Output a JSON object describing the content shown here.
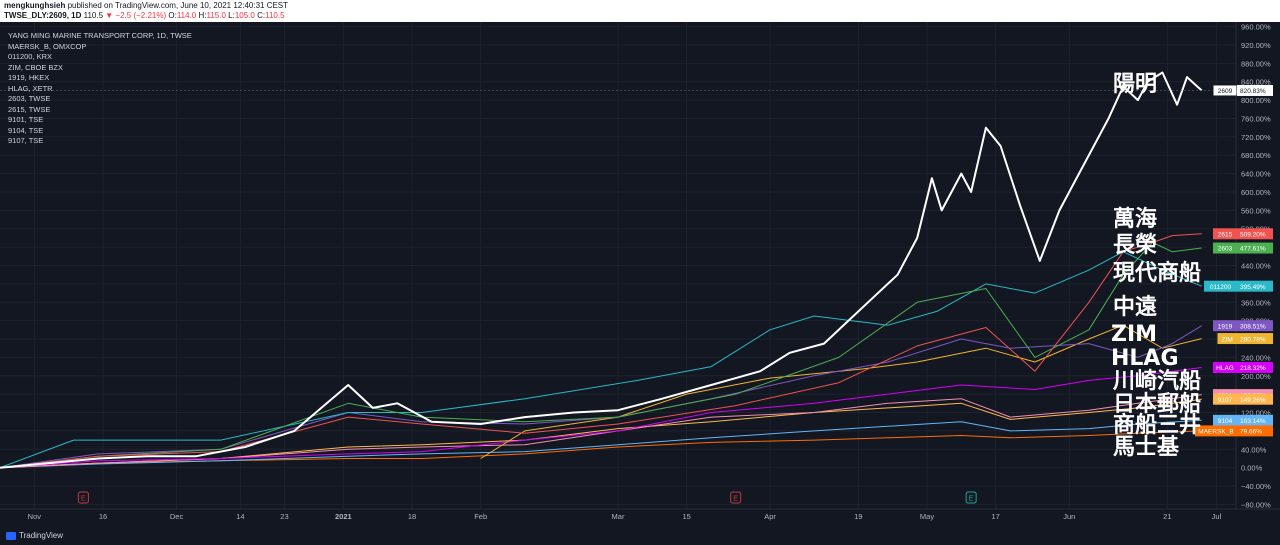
{
  "header": {
    "publisher": "mengkunghsieh",
    "published_text": "published on TradingView.com, June 10, 2021 12:40:31 CEST",
    "symbol": "TWSE_DLY:2609, 1D",
    "price": "110.5",
    "change": "▼ −2.5 (−2.21%)",
    "ohlc": {
      "o_label": "O:",
      "o": "114.0",
      "h_label": "H:",
      "h": "115.0",
      "l_label": "L:",
      "l": "105.0",
      "c_label": "C:",
      "c": "110.5"
    }
  },
  "footer": {
    "brand": "TradingView"
  },
  "legend": {
    "title": "YANG MING MARINE TRANSPORT CORP, 1D, TWSE",
    "items": [
      "MAERSK_B, OMXCOP",
      "011200, KRX",
      "ZIM, CBOE BZX",
      "1919, HKEX",
      "HLAG, XETR",
      "2603, TWSE",
      "2615, TWSE",
      "9101, TSE",
      "9104, TSE",
      "9107, TSE"
    ]
  },
  "annotations": {
    "yangming": "陽明",
    "wanhai": "萬海",
    "evergreen": "長榮",
    "hmm": "現代商船",
    "cosco": "中遠",
    "zim": "ZIM",
    "hlag": "HLAG",
    "kline": "川崎汽船",
    "nyk": "日本郵船",
    "mol": "商船三井",
    "maersk": "馬士基"
  },
  "colors": {
    "background": "#131722",
    "grid": "#1e222d",
    "axis_text": "#b2b5be",
    "earnings_red": "#c23b3b",
    "earnings_green": "#26a69a"
  },
  "chart_data": {
    "type": "line",
    "y_unit": "%",
    "ylim": [
      -90,
      970
    ],
    "y_ticks": [
      "960.00%",
      "920.00%",
      "880.00%",
      "840.00%",
      "800.00%",
      "760.00%",
      "720.00%",
      "680.00%",
      "640.00%",
      "600.00%",
      "560.00%",
      "520.00%",
      "480.00%",
      "440.00%",
      "400.00%",
      "360.00%",
      "320.00%",
      "280.00%",
      "240.00%",
      "200.00%",
      "160.00%",
      "120.00%",
      "80.00%",
      "40.00%",
      "0.00%",
      "−40.00%",
      "−80.00%"
    ],
    "y_tick_values": [
      960,
      920,
      880,
      840,
      800,
      760,
      720,
      680,
      640,
      600,
      560,
      520,
      480,
      440,
      400,
      360,
      320,
      280,
      240,
      200,
      160,
      120,
      80,
      40,
      0,
      -40,
      -80
    ],
    "x_range": [
      "2020-10-26",
      "2021-07-05"
    ],
    "x_ticks": [
      {
        "label": "Nov",
        "date": "2020-11-02"
      },
      {
        "label": "16",
        "date": "2020-11-16"
      },
      {
        "label": "Dec",
        "date": "2020-12-01"
      },
      {
        "label": "14",
        "date": "2020-12-14"
      },
      {
        "label": "23",
        "date": "2020-12-23"
      },
      {
        "label": "2021",
        "date": "2021-01-04"
      },
      {
        "label": "18",
        "date": "2021-01-18"
      },
      {
        "label": "Feb",
        "date": "2021-02-01"
      },
      {
        "label": "Mar",
        "date": "2021-03-01"
      },
      {
        "label": "15",
        "date": "2021-03-15"
      },
      {
        "label": "Apr",
        "date": "2021-04-01"
      },
      {
        "label": "19",
        "date": "2021-04-19"
      },
      {
        "label": "May",
        "date": "2021-05-03"
      },
      {
        "label": "17",
        "date": "2021-05-17"
      },
      {
        "label": "Jun",
        "date": "2021-06-01"
      },
      {
        "label": "21",
        "date": "2021-06-21"
      },
      {
        "label": "Jul",
        "date": "2021-07-01"
      }
    ],
    "earnings_markers": [
      {
        "date": "2020-11-12",
        "label": "E",
        "color": "#c23b3b"
      },
      {
        "date": "2021-03-25",
        "label": "E",
        "color": "#c23b3b"
      },
      {
        "date": "2021-05-12",
        "label": "E",
        "color": "#26a69a"
      }
    ],
    "series": [
      {
        "name": "2609",
        "label": "820.83%",
        "color": "#ffffff",
        "width": 2,
        "points": [
          [
            "2020-10-26",
            0
          ],
          [
            "2020-11-05",
            10
          ],
          [
            "2020-11-15",
            20
          ],
          [
            "2020-11-25",
            25
          ],
          [
            "2020-12-05",
            25
          ],
          [
            "2020-12-15",
            45
          ],
          [
            "2020-12-25",
            80
          ],
          [
            "2021-01-05",
            180
          ],
          [
            "2021-01-10",
            130
          ],
          [
            "2021-01-15",
            140
          ],
          [
            "2021-01-22",
            100
          ],
          [
            "2021-02-01",
            95
          ],
          [
            "2021-02-10",
            110
          ],
          [
            "2021-02-20",
            120
          ],
          [
            "2021-03-01",
            125
          ],
          [
            "2021-03-10",
            150
          ],
          [
            "2021-03-20",
            180
          ],
          [
            "2021-03-30",
            210
          ],
          [
            "2021-04-05",
            250
          ],
          [
            "2021-04-12",
            270
          ],
          [
            "2021-04-17",
            320
          ],
          [
            "2021-04-22",
            370
          ],
          [
            "2021-04-27",
            420
          ],
          [
            "2021-05-01",
            500
          ],
          [
            "2021-05-04",
            630
          ],
          [
            "2021-05-06",
            560
          ],
          [
            "2021-05-10",
            640
          ],
          [
            "2021-05-12",
            600
          ],
          [
            "2021-05-15",
            740
          ],
          [
            "2021-05-18",
            700
          ],
          [
            "2021-05-22",
            570
          ],
          [
            "2021-05-26",
            450
          ],
          [
            "2021-05-30",
            560
          ],
          [
            "2021-06-03",
            640
          ],
          [
            "2021-06-06",
            700
          ],
          [
            "2021-06-09",
            760
          ],
          [
            "2021-06-12",
            830
          ],
          [
            "2021-06-15",
            800
          ],
          [
            "2021-06-17",
            840
          ],
          [
            "2021-06-20",
            860
          ],
          [
            "2021-06-23",
            790
          ],
          [
            "2021-06-25",
            850
          ],
          [
            "2021-06-28",
            821
          ]
        ]
      },
      {
        "name": "2615",
        "label": "509.20%",
        "color": "#f05350",
        "width": 1,
        "points": [
          [
            "2020-10-26",
            0
          ],
          [
            "2020-11-15",
            25
          ],
          [
            "2020-12-10",
            35
          ],
          [
            "2021-01-05",
            110
          ],
          [
            "2021-01-20",
            95
          ],
          [
            "2021-02-10",
            75
          ],
          [
            "2021-03-01",
            95
          ],
          [
            "2021-03-25",
            135
          ],
          [
            "2021-04-15",
            185
          ],
          [
            "2021-05-01",
            265
          ],
          [
            "2021-05-15",
            305
          ],
          [
            "2021-05-25",
            210
          ],
          [
            "2021-06-05",
            360
          ],
          [
            "2021-06-12",
            470
          ],
          [
            "2021-06-18",
            490
          ],
          [
            "2021-06-22",
            505
          ],
          [
            "2021-06-28",
            509
          ]
        ]
      },
      {
        "name": "2603",
        "label": "477.61%",
        "color": "#4caf50",
        "width": 1,
        "points": [
          [
            "2020-10-26",
            0
          ],
          [
            "2020-11-15",
            25
          ],
          [
            "2020-12-10",
            40
          ],
          [
            "2021-01-05",
            140
          ],
          [
            "2021-01-20",
            110
          ],
          [
            "2021-02-10",
            100
          ],
          [
            "2021-03-01",
            110
          ],
          [
            "2021-03-25",
            160
          ],
          [
            "2021-04-15",
            240
          ],
          [
            "2021-05-01",
            360
          ],
          [
            "2021-05-15",
            390
          ],
          [
            "2021-05-25",
            240
          ],
          [
            "2021-06-05",
            300
          ],
          [
            "2021-06-12",
            420
          ],
          [
            "2021-06-18",
            490
          ],
          [
            "2021-06-22",
            470
          ],
          [
            "2021-06-28",
            478
          ]
        ]
      },
      {
        "name": "011200",
        "label": "395.49%",
        "color": "#2bb8c8",
        "width": 1,
        "points": [
          [
            "2020-10-26",
            0
          ],
          [
            "2020-11-10",
            60
          ],
          [
            "2020-12-10",
            60
          ],
          [
            "2021-01-05",
            120
          ],
          [
            "2021-01-20",
            120
          ],
          [
            "2021-02-10",
            150
          ],
          [
            "2021-03-05",
            190
          ],
          [
            "2021-03-20",
            220
          ],
          [
            "2021-04-01",
            300
          ],
          [
            "2021-04-10",
            330
          ],
          [
            "2021-04-25",
            310
          ],
          [
            "2021-05-05",
            340
          ],
          [
            "2021-05-15",
            400
          ],
          [
            "2021-05-25",
            380
          ],
          [
            "2021-06-05",
            430
          ],
          [
            "2021-06-12",
            470
          ],
          [
            "2021-06-20",
            430
          ],
          [
            "2021-06-28",
            395
          ]
        ]
      },
      {
        "name": "1919",
        "label": "308.51%",
        "color": "#7e57c2",
        "width": 1,
        "points": [
          [
            "2020-10-26",
            0
          ],
          [
            "2020-11-15",
            30
          ],
          [
            "2020-12-10",
            40
          ],
          [
            "2021-01-05",
            120
          ],
          [
            "2021-01-20",
            100
          ],
          [
            "2021-02-10",
            95
          ],
          [
            "2021-03-01",
            110
          ],
          [
            "2021-03-20",
            150
          ],
          [
            "2021-04-10",
            200
          ],
          [
            "2021-04-25",
            230
          ],
          [
            "2021-05-10",
            280
          ],
          [
            "2021-05-20",
            260
          ],
          [
            "2021-06-05",
            270
          ],
          [
            "2021-06-15",
            240
          ],
          [
            "2021-06-22",
            270
          ],
          [
            "2021-06-28",
            309
          ]
        ]
      },
      {
        "name": "ZIM",
        "label": "280.78%",
        "color": "#f0b431",
        "width": 1,
        "points": [
          [
            "2021-02-01",
            20
          ],
          [
            "2021-02-10",
            80
          ],
          [
            "2021-03-01",
            110
          ],
          [
            "2021-03-15",
            160
          ],
          [
            "2021-04-01",
            195
          ],
          [
            "2021-04-20",
            215
          ],
          [
            "2021-05-01",
            230
          ],
          [
            "2021-05-15",
            260
          ],
          [
            "2021-05-25",
            230
          ],
          [
            "2021-06-05",
            280
          ],
          [
            "2021-06-12",
            310
          ],
          [
            "2021-06-20",
            260
          ],
          [
            "2021-06-28",
            281
          ]
        ]
      },
      {
        "name": "HLAG",
        "label": "218.32%",
        "color": "#d500f9",
        "width": 1,
        "points": [
          [
            "2020-10-26",
            0
          ],
          [
            "2020-11-15",
            15
          ],
          [
            "2020-12-10",
            20
          ],
          [
            "2021-01-05",
            30
          ],
          [
            "2021-01-20",
            35
          ],
          [
            "2021-02-10",
            60
          ],
          [
            "2021-03-01",
            80
          ],
          [
            "2021-03-20",
            120
          ],
          [
            "2021-04-10",
            140
          ],
          [
            "2021-04-25",
            160
          ],
          [
            "2021-05-10",
            180
          ],
          [
            "2021-05-25",
            170
          ],
          [
            "2021-06-05",
            190
          ],
          [
            "2021-06-15",
            200
          ],
          [
            "2021-06-28",
            218
          ]
        ]
      },
      {
        "name": "9101",
        "label": "158.60%",
        "color": "#f48fb1",
        "width": 1,
        "points": [
          [
            "2020-10-26",
            0
          ],
          [
            "2020-11-15",
            10
          ],
          [
            "2020-12-10",
            20
          ],
          [
            "2021-01-05",
            40
          ],
          [
            "2021-01-20",
            45
          ],
          [
            "2021-02-10",
            50
          ],
          [
            "2021-03-01",
            80
          ],
          [
            "2021-03-20",
            110
          ],
          [
            "2021-04-10",
            120
          ],
          [
            "2021-04-25",
            140
          ],
          [
            "2021-05-10",
            150
          ],
          [
            "2021-05-20",
            110
          ],
          [
            "2021-06-05",
            125
          ],
          [
            "2021-06-15",
            140
          ],
          [
            "2021-06-28",
            159
          ]
        ]
      },
      {
        "name": "9107",
        "label": "149.26%",
        "color": "#ffb74d",
        "width": 1,
        "points": [
          [
            "2020-10-26",
            0
          ],
          [
            "2020-11-15",
            10
          ],
          [
            "2020-12-10",
            20
          ],
          [
            "2021-01-05",
            45
          ],
          [
            "2021-01-20",
            50
          ],
          [
            "2021-02-10",
            60
          ],
          [
            "2021-03-01",
            85
          ],
          [
            "2021-03-20",
            100
          ],
          [
            "2021-04-10",
            120
          ],
          [
            "2021-04-25",
            130
          ],
          [
            "2021-05-10",
            140
          ],
          [
            "2021-05-20",
            105
          ],
          [
            "2021-06-05",
            120
          ],
          [
            "2021-06-15",
            130
          ],
          [
            "2021-06-28",
            149
          ]
        ]
      },
      {
        "name": "9104",
        "label": "103.14%",
        "color": "#64b5f6",
        "width": 1,
        "points": [
          [
            "2020-10-26",
            0
          ],
          [
            "2020-11-15",
            8
          ],
          [
            "2020-12-10",
            15
          ],
          [
            "2021-01-05",
            25
          ],
          [
            "2021-01-20",
            30
          ],
          [
            "2021-02-10",
            35
          ],
          [
            "2021-03-01",
            50
          ],
          [
            "2021-03-20",
            65
          ],
          [
            "2021-04-10",
            80
          ],
          [
            "2021-04-25",
            90
          ],
          [
            "2021-05-10",
            100
          ],
          [
            "2021-05-20",
            80
          ],
          [
            "2021-06-05",
            85
          ],
          [
            "2021-06-15",
            95
          ],
          [
            "2021-06-28",
            103
          ]
        ]
      },
      {
        "name": "MAERSK_B",
        "label": "79.66%",
        "color": "#ff6d00",
        "width": 1,
        "points": [
          [
            "2020-10-26",
            0
          ],
          [
            "2020-11-15",
            10
          ],
          [
            "2020-12-10",
            15
          ],
          [
            "2021-01-05",
            20
          ],
          [
            "2021-01-20",
            20
          ],
          [
            "2021-02-10",
            30
          ],
          [
            "2021-03-01",
            45
          ],
          [
            "2021-03-20",
            55
          ],
          [
            "2021-04-10",
            60
          ],
          [
            "2021-04-25",
            65
          ],
          [
            "2021-05-10",
            70
          ],
          [
            "2021-05-20",
            65
          ],
          [
            "2021-06-05",
            70
          ],
          [
            "2021-06-15",
            75
          ],
          [
            "2021-06-28",
            80
          ]
        ]
      }
    ]
  }
}
